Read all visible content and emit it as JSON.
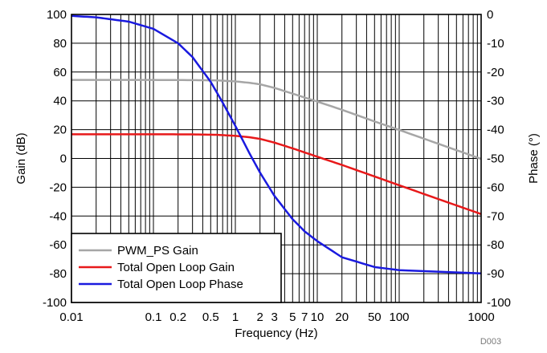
{
  "chart_data": {
    "type": "line",
    "xlabel": "Frequency (Hz)",
    "ylabel_left": "Gain (dB)",
    "ylabel_right": "Phase (°)",
    "x_scale": "log",
    "xlim": [
      0.01,
      1000
    ],
    "ylim_left": [
      -100,
      100
    ],
    "ylim_right": [
      -100,
      0
    ],
    "grid": true,
    "legend_position": "bottom-left",
    "x_ticks": [
      {
        "v": 0.01,
        "label": "0.01"
      },
      {
        "v": 0.1,
        "label": "0.1"
      },
      {
        "v": 0.2,
        "label": "0.2"
      },
      {
        "v": 0.5,
        "label": "0.5"
      },
      {
        "v": 1,
        "label": "1"
      },
      {
        "v": 2,
        "label": "2"
      },
      {
        "v": 3,
        "label": "3"
      },
      {
        "v": 5,
        "label": "5"
      },
      {
        "v": 7,
        "label": "7"
      },
      {
        "v": 10,
        "label": "10"
      },
      {
        "v": 20,
        "label": "20"
      },
      {
        "v": 50,
        "label": "50"
      },
      {
        "v": 100,
        "label": "100"
      },
      {
        "v": 1000,
        "label": "1000"
      }
    ],
    "y_left_ticks": [
      {
        "v": 100,
        "label": "100"
      },
      {
        "v": 80,
        "label": "80"
      },
      {
        "v": 60,
        "label": "60"
      },
      {
        "v": 40,
        "label": "40"
      },
      {
        "v": 20,
        "label": "20"
      },
      {
        "v": 0,
        "label": "0"
      },
      {
        "v": -20,
        "label": "-20"
      },
      {
        "v": -40,
        "label": "-40"
      },
      {
        "v": -60,
        "label": "-60"
      },
      {
        "v": -80,
        "label": "-80"
      },
      {
        "v": -100,
        "label": "-100"
      }
    ],
    "y_right_ticks": [
      {
        "v": 0,
        "label": "0"
      },
      {
        "v": -10,
        "label": "-10"
      },
      {
        "v": -20,
        "label": "-20"
      },
      {
        "v": -30,
        "label": "-30"
      },
      {
        "v": -40,
        "label": "-40"
      },
      {
        "v": -50,
        "label": "-50"
      },
      {
        "v": -60,
        "label": "-60"
      },
      {
        "v": -70,
        "label": "-70"
      },
      {
        "v": -80,
        "label": "-80"
      },
      {
        "v": -90,
        "label": "-90"
      },
      {
        "v": -100,
        "label": "-100"
      }
    ],
    "series": [
      {
        "name": "PWM_PS Gain",
        "axis": "left",
        "color": "#a6a6a6",
        "x": [
          0.01,
          0.1,
          0.3,
          0.6,
          1,
          1.5,
          2,
          3,
          5,
          10,
          20,
          50,
          100,
          300,
          1000
        ],
        "y": [
          54.5,
          54.5,
          54.4,
          54.2,
          53.5,
          52.5,
          51.5,
          49,
          45,
          39.5,
          33.8,
          25.7,
          19.8,
          10.2,
          -0.3
        ]
      },
      {
        "name": "Total Open Loop Gain",
        "axis": "left",
        "color": "#e8191a",
        "x": [
          0.01,
          0.1,
          0.3,
          0.6,
          1,
          1.5,
          2,
          3,
          5,
          10,
          20,
          50,
          100,
          300,
          1000
        ],
        "y": [
          16.8,
          16.8,
          16.7,
          16.4,
          15.7,
          14.7,
          13.6,
          11,
          7,
          1.2,
          -4.5,
          -12.5,
          -18.6,
          -28.2,
          -38.6
        ]
      },
      {
        "name": "Total Open Loop Phase",
        "axis": "right",
        "color": "#1a1adf",
        "x": [
          0.01,
          0.02,
          0.05,
          0.1,
          0.2,
          0.3,
          0.5,
          0.7,
          1,
          1.5,
          2,
          3,
          5,
          7,
          10,
          20,
          50,
          100,
          1000
        ],
        "y": [
          -0.5,
          -1,
          -2.5,
          -5,
          -10,
          -14.8,
          -23.4,
          -30.6,
          -38.7,
          -48.4,
          -54.9,
          -63,
          -71.1,
          -75.3,
          -78.7,
          -84.3,
          -87.7,
          -88.8,
          -89.9
        ]
      }
    ],
    "watermark": "D003"
  }
}
